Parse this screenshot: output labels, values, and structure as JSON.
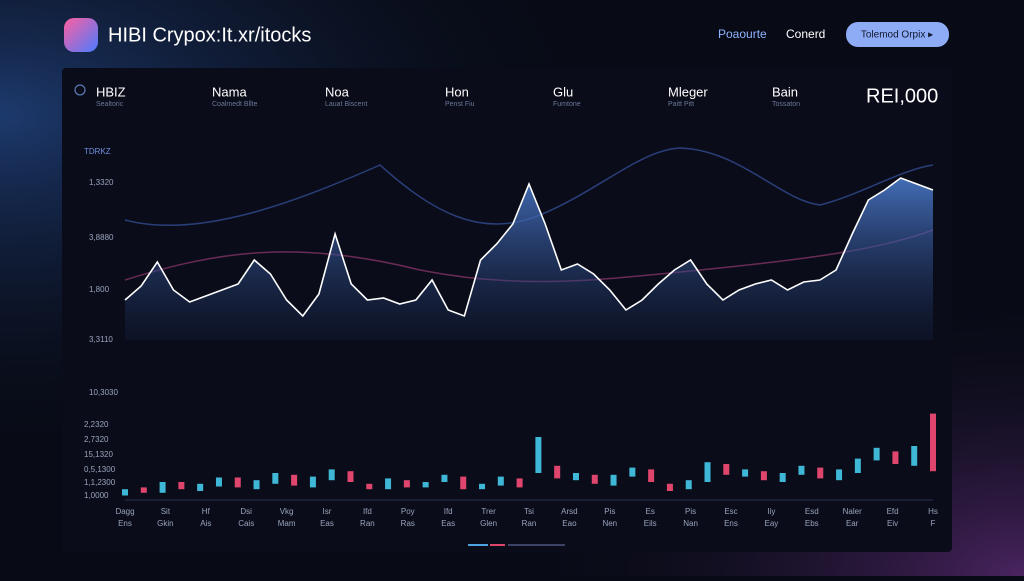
{
  "header": {
    "title": "HIBI Crypox:It.xr/itocks",
    "nav": [
      "Poaourte",
      "Conerd"
    ],
    "button": "Tolemod Orpix ▸"
  },
  "stats": [
    {
      "label": "HBIZ",
      "sub": "Sealtoric"
    },
    {
      "label": "Nama",
      "sub": "Coalmedt Bllte"
    },
    {
      "label": "Noa",
      "sub": "Lauat Biscent"
    },
    {
      "label": "Hon",
      "sub": "Penst Fiu"
    },
    {
      "label": "Glu",
      "sub": "Fumtone"
    },
    {
      "label": "Mleger",
      "sub": "Paitt Pitt"
    },
    {
      "label": "Bain",
      "sub": "Tossaton"
    }
  ],
  "headline_value": "REI,000",
  "price_chart": {
    "y_labels": [
      "TDRKZ",
      "1,3320",
      "3,8880",
      "1,800",
      "3,3110",
      "10,3030"
    ],
    "ylim": [
      0,
      100
    ],
    "line_color": "#ffffff",
    "values": [
      20,
      27,
      39,
      25,
      19,
      22,
      25,
      28,
      40,
      33,
      20,
      12,
      23,
      53,
      28,
      20,
      21,
      18,
      20,
      30,
      15,
      12,
      40,
      48,
      58,
      78,
      58,
      35,
      38,
      33,
      25,
      15,
      20,
      28,
      35,
      40,
      28,
      20,
      25,
      28,
      30,
      25,
      29,
      30,
      35,
      53,
      70,
      75,
      81,
      78,
      75
    ]
  },
  "volume_chart": {
    "y_labels": [
      "2,2320",
      "2,7320",
      "15,1320",
      "0,5,1300",
      "1,1,2300",
      "1,0000"
    ],
    "ylim": [
      0,
      100
    ],
    "up_color": "#3fb7d6",
    "down_color": "#e0466d",
    "candles": [
      [
        5,
        12
      ],
      [
        14,
        8
      ],
      [
        8,
        20
      ],
      [
        20,
        12
      ],
      [
        10,
        18
      ],
      [
        15,
        25
      ],
      [
        25,
        14
      ],
      [
        12,
        22
      ],
      [
        18,
        30
      ],
      [
        28,
        16
      ],
      [
        14,
        26
      ],
      [
        22,
        34
      ],
      [
        32,
        20
      ],
      [
        18,
        12
      ],
      [
        12,
        24
      ],
      [
        22,
        14
      ],
      [
        14,
        20
      ],
      [
        20,
        28
      ],
      [
        26,
        12
      ],
      [
        12,
        18
      ],
      [
        16,
        26
      ],
      [
        24,
        14
      ],
      [
        30,
        70
      ],
      [
        38,
        24
      ],
      [
        22,
        30
      ],
      [
        28,
        18
      ],
      [
        16,
        28
      ],
      [
        26,
        36
      ],
      [
        34,
        20
      ],
      [
        18,
        10
      ],
      [
        12,
        22
      ],
      [
        20,
        42
      ],
      [
        40,
        28
      ],
      [
        26,
        34
      ],
      [
        32,
        22
      ],
      [
        20,
        30
      ],
      [
        28,
        38
      ],
      [
        36,
        24
      ],
      [
        22,
        34
      ],
      [
        30,
        46
      ],
      [
        44,
        58
      ],
      [
        54,
        40
      ],
      [
        38,
        60
      ],
      [
        96,
        32
      ]
    ],
    "x_labels": [
      [
        "Dagg",
        "Ens"
      ],
      [
        "Sit",
        "Gkin"
      ],
      [
        "Hf",
        "Ais"
      ],
      [
        "Dsi",
        "Cais"
      ],
      [
        "Vkg",
        "Mam"
      ],
      [
        "Isr",
        "Eas"
      ],
      [
        "Ifd",
        "Ran"
      ],
      [
        "Poy",
        "Ras"
      ],
      [
        "Ifd",
        "Eas"
      ],
      [
        "Trer",
        "Glen"
      ],
      [
        "Tsi",
        "Ran"
      ],
      [
        "Arsd",
        "Eao"
      ],
      [
        "Pis",
        "Nen"
      ],
      [
        "Es",
        "Eils"
      ],
      [
        "Pis",
        "Nan"
      ],
      [
        "Esc",
        "Ens"
      ],
      [
        "Iiy",
        "Eay"
      ],
      [
        "Esd",
        "Ebs"
      ],
      [
        "Naler",
        "Ear"
      ],
      [
        "Efd",
        "Eiv"
      ],
      [
        "Hs",
        "F"
      ]
    ]
  }
}
